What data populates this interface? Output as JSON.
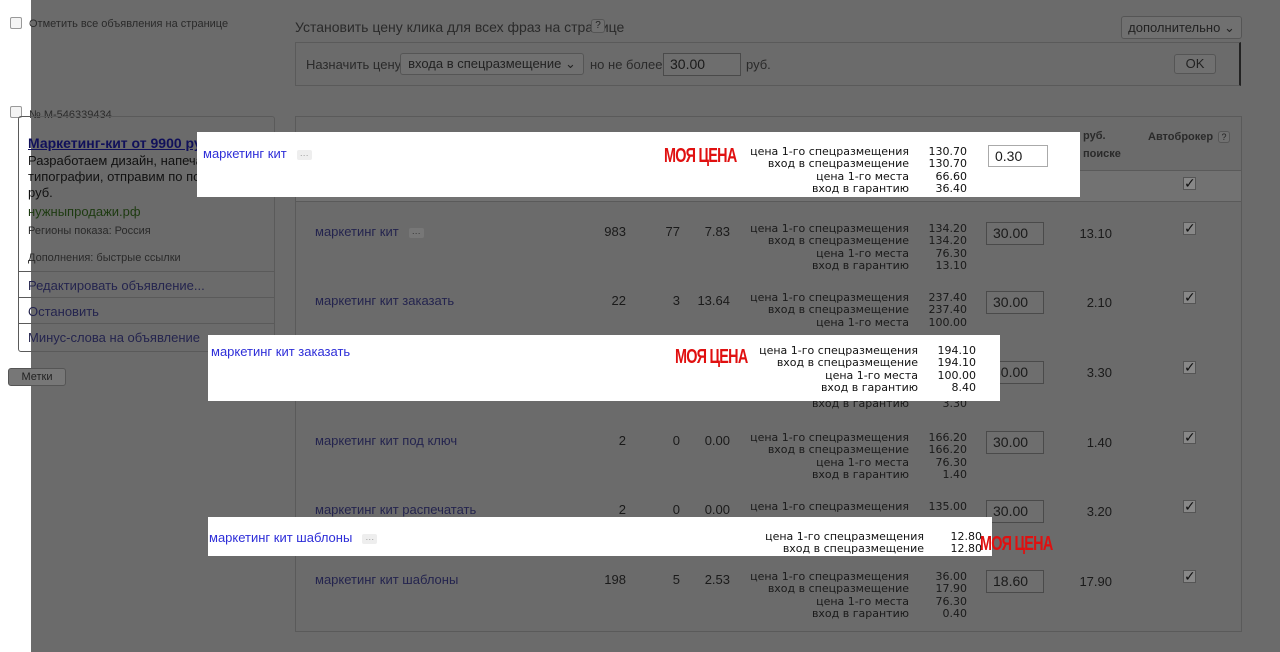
{
  "select_all_label": "Отметить все объявления на странице",
  "price_title": "Установить цену клика для всех фраз на странице",
  "help": "?",
  "more_button": "дополнительно",
  "set_price": {
    "label": "Назначить цену",
    "select_value": "входа в спецразмещение",
    "not_more": "но не более",
    "value": "30.00",
    "currency": "руб.",
    "ok": "OK"
  },
  "ad": {
    "number": "№ M-546339434",
    "title": "Маркетинг-кит от 9900 ру",
    "text": [
      "Разработаем дизайн, напеча",
      "типографии, отправим по поч",
      "руб."
    ],
    "domain": "нужныпродажи.рф",
    "regions": "Регионы показа: Россия",
    "extras": "Дополнения: быстрые ссылки",
    "actions": [
      "Редактировать объявление...",
      "Остановить",
      "Минус-слова на объявление"
    ],
    "tags": "Метки"
  },
  "header": {
    "price_col": "руб.",
    "price_col2": "поиске",
    "autobroker": "Автоброкер"
  },
  "labels": [
    "цена 1-го спецразмещения",
    "вход в спецразмещение",
    "цена 1-го места",
    "вход в гарантию"
  ],
  "rows": [
    {
      "phrase": "маркетинг кит",
      "shows": "983",
      "clicks": "77",
      "ctr": "7.83",
      "bids": [
        "134.20",
        "134.20",
        "76.30",
        "13.10"
      ],
      "price": "30.00",
      "search_price": "13.10",
      "autobroker": true
    },
    {
      "phrase": "маркетинг кит заказать",
      "shows": "22",
      "clicks": "3",
      "ctr": "13.64",
      "bids": [
        "237.40",
        "237.40",
        "100.00"
      ],
      "price": "30.00",
      "search_price": "2.10",
      "autobroker": true
    },
    {
      "bids4": "3.30",
      "price": "30.00",
      "search_price": "3.30",
      "autobroker": true
    },
    {
      "phrase": "маркетинг кит под ключ",
      "shows": "2",
      "clicks": "0",
      "ctr": "0.00",
      "bids": [
        "166.20",
        "166.20",
        "76.30",
        "1.40"
      ],
      "price": "30.00",
      "search_price": "1.40",
      "autobroker": true
    },
    {
      "phrase": "маркетинг кит распечатать",
      "shows": "2",
      "clicks": "0",
      "ctr": "0.00",
      "bids": [
        "135.00"
      ],
      "price": "30.00",
      "search_price": "3.20",
      "autobroker": true
    },
    {
      "phrase": "маркетинг кит шаблоны",
      "shows": "198",
      "clicks": "5",
      "ctr": "2.53",
      "bids": [
        "36.00",
        "17.90",
        "76.30",
        "0.40"
      ],
      "price": "18.60",
      "search_price": "17.90",
      "autobroker": true
    }
  ],
  "callouts": [
    {
      "phrase": "маркетинг кит",
      "tag": "МОЯ ЦЕНА",
      "bids": [
        "130.70",
        "130.70",
        "66.60",
        "36.40"
      ],
      "price": "0.30"
    },
    {
      "phrase": "маркетинг кит заказать",
      "tag": "МОЯ ЦЕНА",
      "bids": [
        "194.10",
        "194.10",
        "100.00",
        "8.40"
      ]
    },
    {
      "phrase": "маркетинг кит шаблоны",
      "tag": "МОЯ ЦЕНА",
      "bids": [
        "12.80",
        "12.80"
      ]
    }
  ],
  "colors": {
    "overlay": "#6b6b6b",
    "callout_tag": "#e01010",
    "callout_link": "#2e2ed8"
  }
}
